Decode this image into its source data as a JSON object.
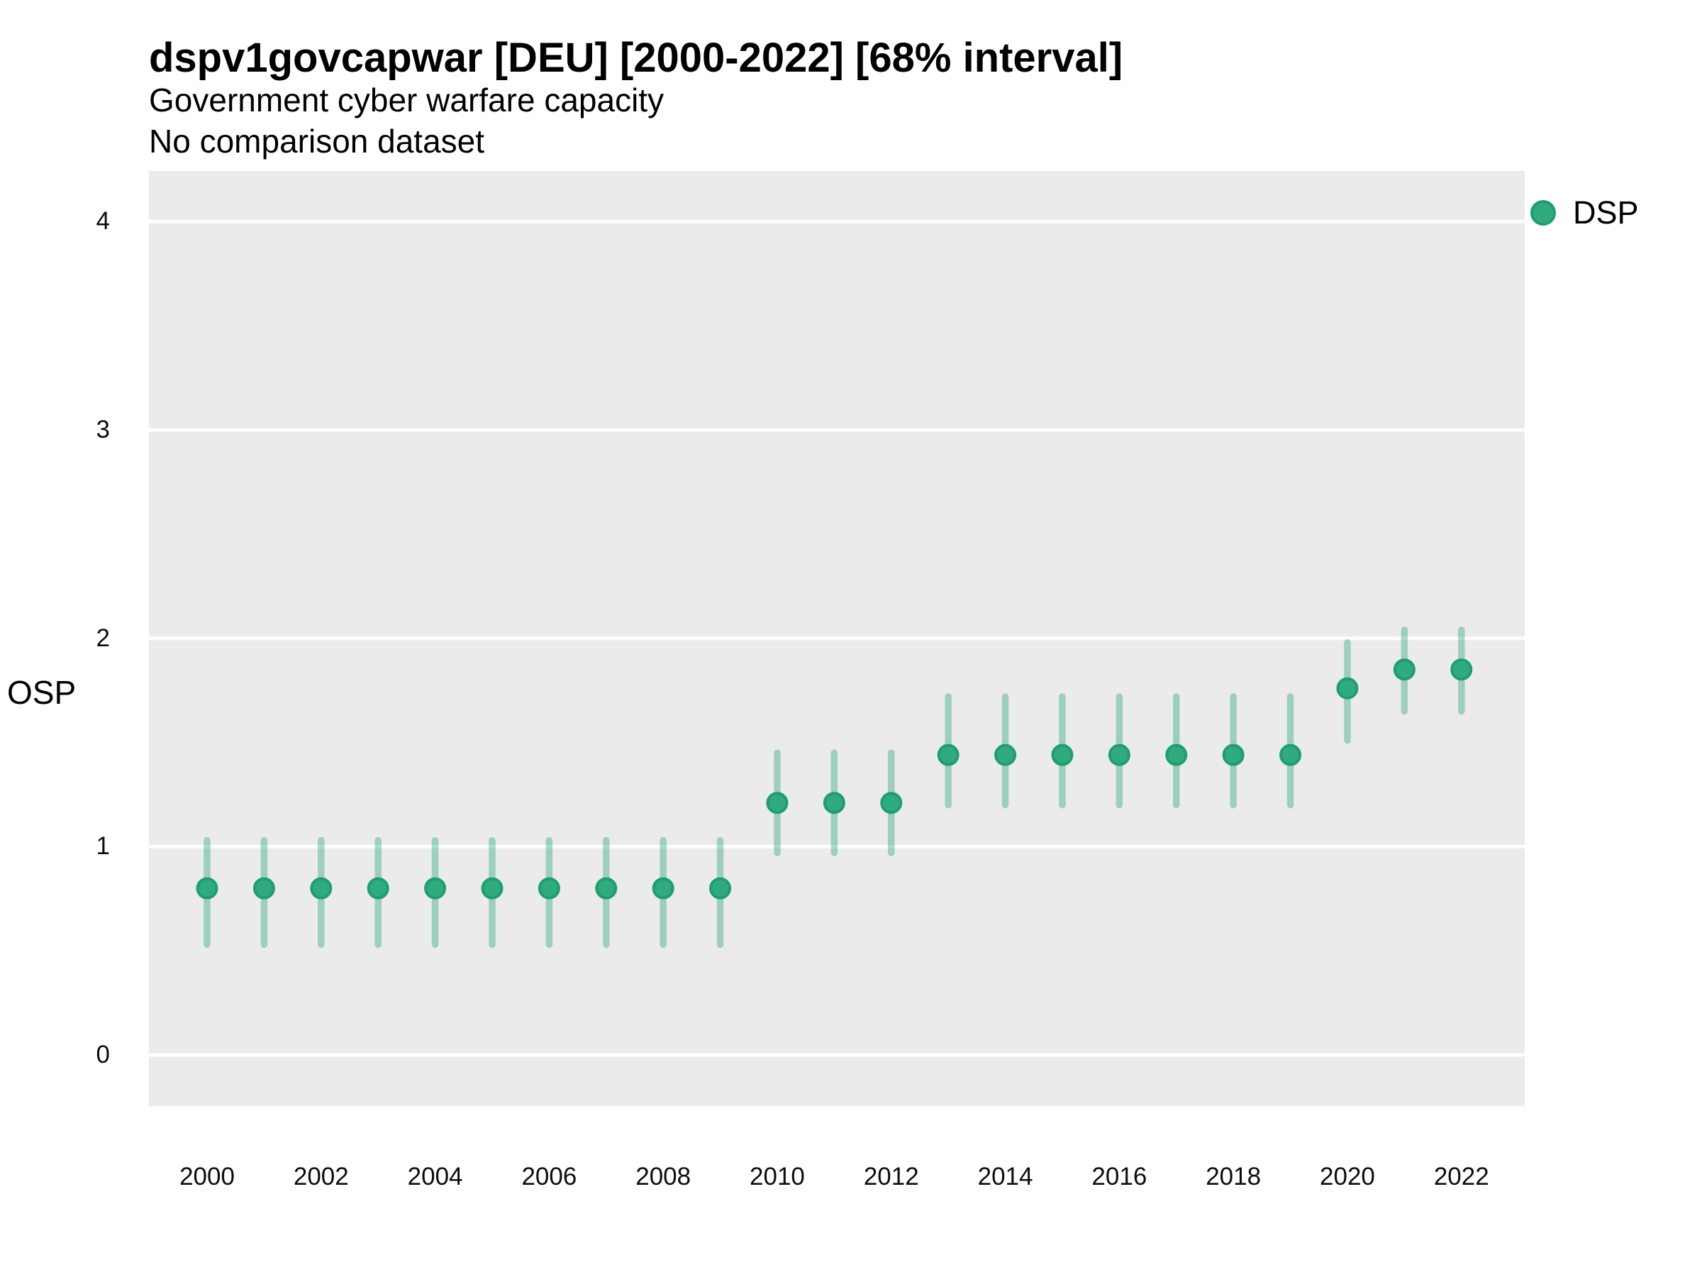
{
  "header": {
    "title": "dspv1govcapwar [DEU] [2000-2022] [68% interval]",
    "subtitle": "Government cyber warfare capacity",
    "note": "No comparison dataset"
  },
  "legend": {
    "label": "DSP",
    "position": "right"
  },
  "axes": {
    "y_title": "OSP",
    "y_ticks": [
      0,
      1,
      2,
      3,
      4
    ],
    "x_ticks": [
      2000,
      2002,
      2004,
      2006,
      2008,
      2010,
      2012,
      2014,
      2016,
      2018,
      2020,
      2022
    ]
  },
  "colors": {
    "panel_bg": "#EBEBEB",
    "gridline": "#FFFFFF",
    "point_fill": "#2FAB7E",
    "point_stroke": "#1E9E71",
    "interval_stroke": "rgba(47,171,126,0.42)",
    "text": "#000000"
  },
  "chart_data": {
    "type": "scatter",
    "subtype": "pointrange",
    "title": "dspv1govcapwar [DEU] [2000-2022] [68% interval]",
    "subtitle": "Government cyber warfare capacity",
    "note": "No comparison dataset",
    "xlabel": "",
    "ylabel": "OSP",
    "grid": "horizontal-major-only",
    "legend_position": "right",
    "xlim": [
      1998.98,
      2023.11
    ],
    "ylim": [
      -0.245,
      4.243
    ],
    "x": [
      2000,
      2001,
      2002,
      2003,
      2004,
      2005,
      2006,
      2007,
      2008,
      2009,
      2010,
      2011,
      2012,
      2013,
      2014,
      2015,
      2016,
      2017,
      2018,
      2019,
      2020,
      2021,
      2022
    ],
    "series": [
      {
        "name": "DSP",
        "interval_label": "68% interval",
        "estimate": [
          0.8,
          0.8,
          0.8,
          0.8,
          0.8,
          0.8,
          0.8,
          0.8,
          0.8,
          0.8,
          1.21,
          1.21,
          1.21,
          1.44,
          1.44,
          1.44,
          1.44,
          1.44,
          1.44,
          1.44,
          1.76,
          1.85,
          1.85
        ],
        "lower": [
          0.53,
          0.53,
          0.53,
          0.53,
          0.53,
          0.53,
          0.53,
          0.53,
          0.53,
          0.53,
          0.97,
          0.97,
          0.97,
          1.2,
          1.2,
          1.2,
          1.2,
          1.2,
          1.2,
          1.2,
          1.51,
          1.65,
          1.65
        ],
        "upper": [
          1.03,
          1.03,
          1.03,
          1.03,
          1.03,
          1.03,
          1.03,
          1.03,
          1.03,
          1.03,
          1.45,
          1.45,
          1.45,
          1.72,
          1.72,
          1.72,
          1.72,
          1.72,
          1.72,
          1.72,
          1.98,
          2.04,
          2.04
        ]
      }
    ]
  }
}
